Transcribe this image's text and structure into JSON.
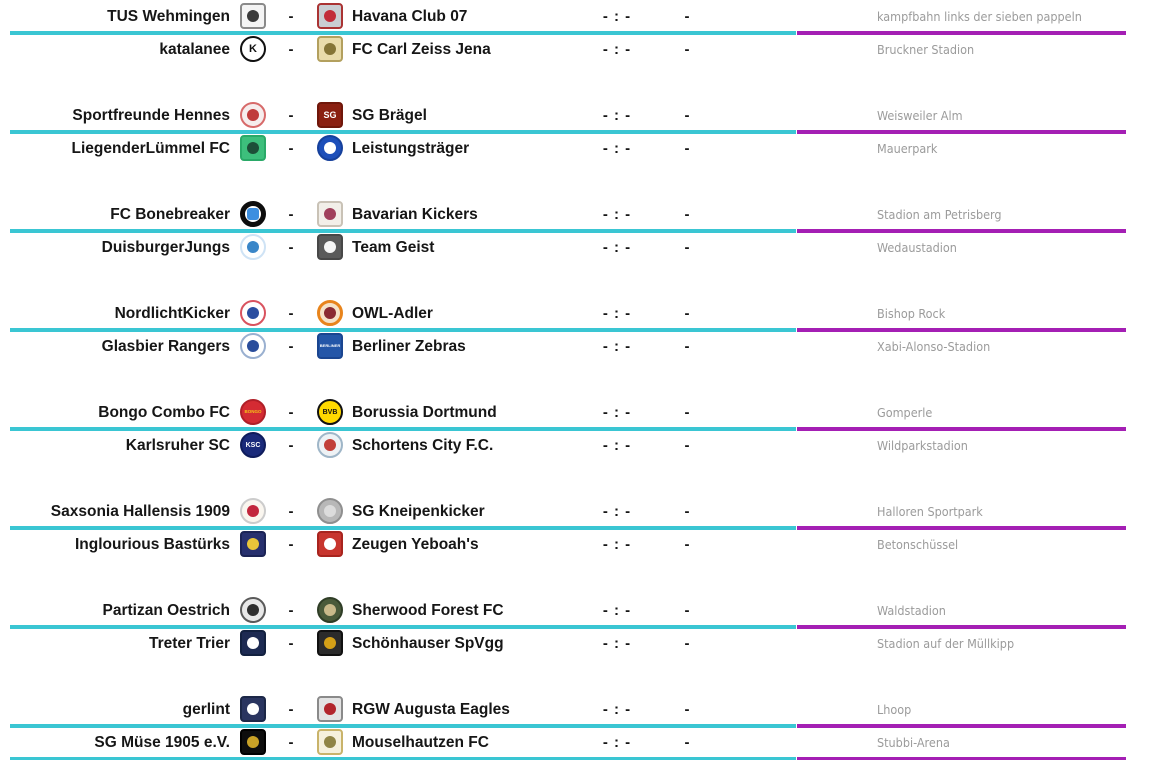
{
  "list": {
    "score_placeholder": "- : -",
    "result_placeholder": "-",
    "vs_separator": "-"
  },
  "colors": {
    "divider_left_cyan": "#3ac6d3",
    "divider_right_magenta": "#a41fb4",
    "team_text": "#161616",
    "venue_text": "#9b9b9b"
  },
  "matches": [
    {
      "home": {
        "name": "TUS Wehmingen",
        "logo": {
          "shape": "square",
          "bg": "#f4f4f4",
          "ring": "#8a8a8a",
          "inner": "dot",
          "innerColor": "#3a3a3a"
        }
      },
      "away": {
        "name": "Havana Club 07",
        "logo": {
          "shape": "square",
          "bg": "#c9ced3",
          "ring": "#a33",
          "inner": "dot",
          "innerColor": "#c22d3a"
        }
      },
      "score": "- : -",
      "result": "-",
      "venue": "kampfbahn links der sieben pappeln",
      "divider_after": true
    },
    {
      "home": {
        "name": "katalanee",
        "logo": {
          "shape": "circle",
          "bg": "#ffffff",
          "ring": "#111111",
          "inner": "text",
          "text": "K",
          "innerColor": "#111111",
          "textSize": "11px"
        }
      },
      "away": {
        "name": "FC Carl Zeiss Jena",
        "logo": {
          "shape": "square",
          "bg": "#e9dcab",
          "ring": "#b3a05e",
          "inner": "dot",
          "innerColor": "#857536"
        }
      },
      "score": "- : -",
      "result": "-",
      "venue": "Bruckner Stadion",
      "divider_after": false
    },
    {
      "home": {
        "name": "Sportfreunde Hennes",
        "logo": {
          "shape": "circle",
          "bg": "#f6eded",
          "ring": "#d76a6a",
          "inner": "dot",
          "innerColor": "#c03a3a"
        }
      },
      "away": {
        "name": "SG Brägel",
        "logo": {
          "shape": "square",
          "bg": "#8a1f10",
          "ring": "#6f170a",
          "inner": "text",
          "text": "SG",
          "innerColor": "#ffffff",
          "textSize": "9px"
        }
      },
      "score": "- : -",
      "result": "-",
      "venue": "Weisweiler Alm",
      "divider_after": true
    },
    {
      "home": {
        "name": "LiegenderLümmel FC",
        "logo": {
          "shape": "square",
          "bg": "#3dbf7c",
          "ring": "#2aa968",
          "inner": "dot",
          "innerColor": "#1d4f38"
        }
      },
      "away": {
        "name": "Leistungsträger",
        "logo": {
          "shape": "circle",
          "bg": "#1d4fba",
          "ring": "#16409b",
          "inner": "dot",
          "innerColor": "#ffffff"
        }
      },
      "score": "- : -",
      "result": "-",
      "venue": "Mauerpark",
      "divider_after": false
    },
    {
      "home": {
        "name": "FC Bonebreaker",
        "logo": {
          "shape": "circle",
          "bg": "#ffffff",
          "ring": "#0d0d0d",
          "ringWidth": 5,
          "inner": "square",
          "innerColor": "#3d8fe0"
        }
      },
      "away": {
        "name": "Bavarian Kickers",
        "logo": {
          "shape": "square",
          "bg": "#f2efe9",
          "ring": "#c9c2b6",
          "inner": "dot",
          "innerColor": "#a0405c"
        }
      },
      "score": "- : -",
      "result": "-",
      "venue": "Stadion am Petrisberg",
      "divider_after": true
    },
    {
      "home": {
        "name": "DuisburgerJungs",
        "logo": {
          "shape": "circle",
          "bg": "#ffffff",
          "ring": "#cfe3f5",
          "inner": "dot",
          "innerColor": "#3a86c8"
        }
      },
      "away": {
        "name": "Team Geist",
        "logo": {
          "shape": "square",
          "bg": "#5a5a5a",
          "ring": "#474747",
          "inner": "dot",
          "innerColor": "#f5f5f5"
        }
      },
      "score": "- : -",
      "result": "-",
      "venue": "Wedaustadion",
      "divider_after": false
    },
    {
      "home": {
        "name": "NordlichtKicker",
        "logo": {
          "shape": "circle",
          "bg": "#ffffff",
          "ring": "#d9535f",
          "inner": "dot",
          "innerColor": "#2b4ea0"
        }
      },
      "away": {
        "name": "OWL-Adler",
        "logo": {
          "shape": "circle",
          "bg": "#f5e2c8",
          "ring": "#e8841c",
          "ringWidth": 3,
          "inner": "dot",
          "innerColor": "#8a2a33"
        }
      },
      "score": "- : -",
      "result": "-",
      "venue": "Bishop Rock",
      "divider_after": true
    },
    {
      "home": {
        "name": "Glasbier Rangers",
        "logo": {
          "shape": "circle",
          "bg": "#ffffff",
          "ring": "#9ab0d0",
          "inner": "dot",
          "innerColor": "#2a4d9b"
        }
      },
      "away": {
        "name": "Berliner Zebras",
        "logo": {
          "shape": "square",
          "bg": "#2456a8",
          "ring": "#1a4590",
          "inner": "text",
          "text": "BERLINER",
          "innerColor": "#ffffff",
          "textSize": "4px"
        }
      },
      "score": "- : -",
      "result": "-",
      "venue": "Xabi-Alonso-Stadion",
      "divider_after": false
    },
    {
      "home": {
        "name": "Bongo Combo FC",
        "logo": {
          "shape": "circle",
          "bg": "#d42b33",
          "ring": "#b01f28",
          "inner": "text",
          "text": "BONGO",
          "innerColor": "#f5c518",
          "textSize": "4.5px"
        }
      },
      "away": {
        "name": "Borussia Dortmund",
        "logo": {
          "shape": "circle",
          "bg": "#ffd900",
          "ring": "#111111",
          "inner": "text",
          "text": "BVB",
          "innerColor": "#111111",
          "textSize": "7px"
        }
      },
      "score": "- : -",
      "result": "-",
      "venue": "Gomperle",
      "divider_after": true
    },
    {
      "home": {
        "name": "Karlsruher SC",
        "logo": {
          "shape": "circle",
          "bg": "#1a2a7a",
          "ring": "#0f1c5c",
          "inner": "text",
          "text": "KSC",
          "innerColor": "#ffffff",
          "textSize": "7px"
        }
      },
      "away": {
        "name": "Schortens City F.C.",
        "logo": {
          "shape": "circle",
          "bg": "#eef2f5",
          "ring": "#9fb6c8",
          "inner": "dot",
          "innerColor": "#c2403a"
        }
      },
      "score": "- : -",
      "result": "-",
      "venue": "Wildparkstadion",
      "divider_after": false
    },
    {
      "home": {
        "name": "Saxsonia Hallensis 1909",
        "logo": {
          "shape": "circle",
          "bg": "#faf6ef",
          "ring": "#cccccc",
          "inner": "dot",
          "innerColor": "#c2273d"
        }
      },
      "away": {
        "name": "SG Kneipenkicker",
        "logo": {
          "shape": "circle",
          "bg": "#b8b8b8",
          "ring": "#8f8f8f",
          "inner": "dot",
          "innerColor": "#dcdcdc"
        }
      },
      "score": "- : -",
      "result": "-",
      "venue": "Halloren Sportpark",
      "divider_after": true
    },
    {
      "home": {
        "name": "Inglourious Bastürks",
        "logo": {
          "shape": "square",
          "bg": "#27306e",
          "ring": "#1b2355",
          "inner": "dot",
          "innerColor": "#e8c53a"
        }
      },
      "away": {
        "name": "Zeugen Yeboah's",
        "logo": {
          "shape": "square",
          "bg": "#c8352e",
          "ring": "#a8241e",
          "inner": "dot",
          "innerColor": "#ffffff"
        }
      },
      "score": "- : -",
      "result": "-",
      "venue": "Betonschüssel",
      "divider_after": false
    },
    {
      "home": {
        "name": "Partizan Oestrich",
        "logo": {
          "shape": "circle",
          "bg": "#e8e8e8",
          "ring": "#5a5a5a",
          "inner": "dot",
          "innerColor": "#2e2e2e"
        }
      },
      "away": {
        "name": "Sherwood Forest FC",
        "logo": {
          "shape": "circle",
          "bg": "#4a5a3a",
          "ring": "#2f3d26",
          "inner": "dot",
          "innerColor": "#c9b98a"
        }
      },
      "score": "- : -",
      "result": "-",
      "venue": "Waldstadion",
      "divider_after": true
    },
    {
      "home": {
        "name": "Treter Trier",
        "logo": {
          "shape": "square",
          "bg": "#1d2a52",
          "ring": "#12203f",
          "inner": "dot",
          "innerColor": "#ffffff"
        }
      },
      "away": {
        "name": "Schönhauser SpVgg",
        "logo": {
          "shape": "square",
          "bg": "#2b2b2b",
          "ring": "#111111",
          "inner": "dot",
          "innerColor": "#d4a017"
        }
      },
      "score": "- : -",
      "result": "-",
      "venue": "Stadion auf der Müllkipp",
      "divider_after": false
    },
    {
      "home": {
        "name": "gerlint",
        "logo": {
          "shape": "square",
          "bg": "#2a3560",
          "ring": "#1c2747",
          "inner": "dot",
          "innerColor": "#ffffff"
        }
      },
      "away": {
        "name": "RGW Augusta Eagles",
        "logo": {
          "shape": "square",
          "bg": "#e3e3e3",
          "ring": "#8a8a8a",
          "inner": "dot",
          "innerColor": "#b2252c"
        }
      },
      "score": "- : -",
      "result": "-",
      "venue": "Lhoop",
      "divider_after": true
    },
    {
      "home": {
        "name": "SG Müse 1905 e.V.",
        "logo": {
          "shape": "square",
          "bg": "#0d0d0d",
          "ring": "#000000",
          "inner": "dot",
          "innerColor": "#c9a227"
        }
      },
      "away": {
        "name": "Mouselhautzen FC",
        "logo": {
          "shape": "square",
          "bg": "#f5f0dc",
          "ring": "#c9b36a",
          "inner": "dot",
          "innerColor": "#8f8445"
        }
      },
      "score": "- : -",
      "result": "-",
      "venue": "Stubbi-Arena",
      "divider_after": true
    }
  ]
}
